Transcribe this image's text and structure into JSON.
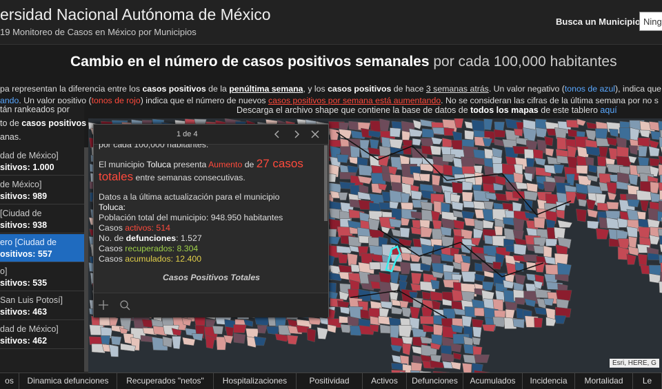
{
  "header": {
    "title": "ersidad Nacional Autónoma de México",
    "subtitle": "19 Monitoreo de Casos en México por Municipios",
    "search_label": "Busca un Municipio",
    "search_value": "Ning"
  },
  "page_title": {
    "bold": "Cambio en el número de casos positivos semanales",
    "light": "por cada 100,000 habitantes"
  },
  "description": {
    "line1": [
      "pa representan la diferencia entre los ",
      "casos positivos",
      " de la ",
      "penúltima semana",
      ", y los ",
      "casos positivos",
      " de hace ",
      "3 semanas atrás",
      ". Un valor negativo (",
      "tonos de azul",
      "), indica que el n"
    ],
    "line2": [
      "ando",
      ". Un valor positivo (",
      "tonos de rojo",
      ") indica que el número de nuevos ",
      "casos positivos por semana está aumentando",
      ". No se consideran las cifras de la última semana por no s"
    ]
  },
  "download": [
    "Descarga el archivo shape que contiene la base de datos de ",
    "todos los mapas",
    " de este tablero ",
    "aquí"
  ],
  "list": {
    "intro": [
      "tán rankeados por",
      "to de ",
      "casos positivos",
      "anas."
    ],
    "items": [
      {
        "name": "dad de México]",
        "value": "sitivos: 1.000"
      },
      {
        "name": "de México]",
        "value": "sitivos: 989"
      },
      {
        "name": "[Ciudad de",
        "value": "sitivos: 938"
      },
      {
        "name": "ero [Ciudad de",
        "value": "ositivos: 557"
      },
      {
        "name": "o]",
        "value": "sitivos: 535"
      },
      {
        "name": "San Luis Potosí]",
        "value": "sitivos: 463"
      },
      {
        "name": "dad de México]",
        "value": "sitivos: 462"
      }
    ]
  },
  "popup": {
    "pager": "1 de 4",
    "cut_line": "por cada 100,000 habitantes.",
    "sentence": [
      "El municipio ",
      "Toluca",
      " presenta ",
      "Aumento",
      " de ",
      "27 casos totales",
      " entre semanas consecutivas."
    ],
    "data_intro": "Datos a la última actualización para el municipio",
    "municipio": "Toluca:",
    "poblacion": "Población total del municipio: 948.950 habitantes",
    "activos": [
      "Casos ",
      "activos: 514"
    ],
    "defunciones": [
      "No. de ",
      "defunciones",
      ": 1.527"
    ],
    "recuperados": [
      "Casos ",
      "recuperados",
      ": 8.304"
    ],
    "acumulados": [
      "Casos ",
      "acumulados",
      ": 12.400"
    ],
    "chart_title": "Casos Positivos Totales"
  },
  "attribution": "Esri, HERE, G",
  "tabs": [
    "os",
    "Dinamica defunciones",
    "Recuperados \"netos\"",
    "Hospitalizaciones",
    "Positividad",
    "Activos",
    "Defunciones",
    "Acumulados",
    "Incidencia",
    "Mortalidad",
    "Le"
  ]
}
